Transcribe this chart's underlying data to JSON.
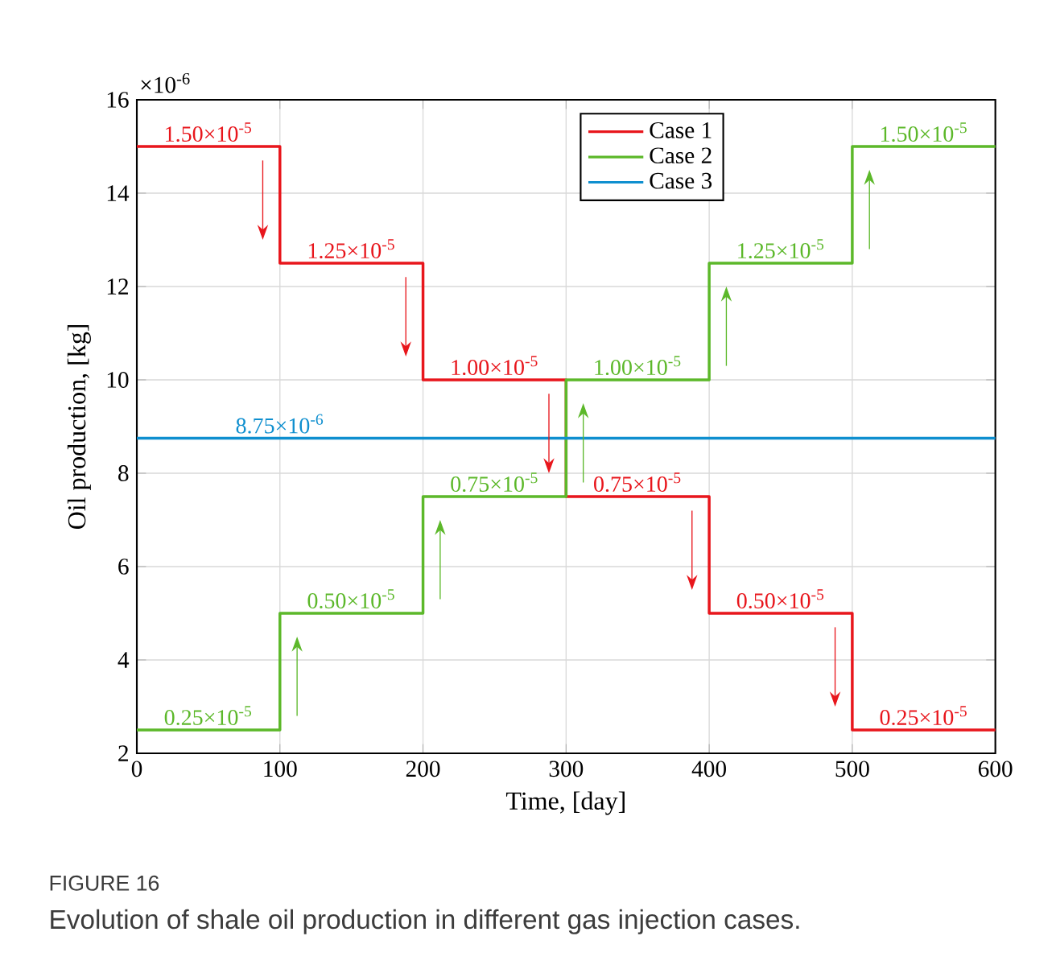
{
  "chart_data": {
    "type": "step",
    "xlabel": "Time, [day]",
    "ylabel": "Oil production, [kg]",
    "xlim": [
      0,
      600
    ],
    "ylim": [
      2,
      16
    ],
    "xticks": [
      0,
      100,
      200,
      300,
      400,
      500,
      600
    ],
    "yticks": [
      2,
      4,
      6,
      8,
      10,
      12,
      14,
      16
    ],
    "grid": true,
    "legend": "top",
    "line_style": "solid",
    "marker": "none",
    "series": [
      {
        "name": "Case 1",
        "color": "#e8161c",
        "x": [
          0,
          100,
          200,
          300,
          400,
          500,
          600
        ],
        "values": [
          15,
          12.5,
          10,
          7.5,
          5,
          2.5,
          2.5
        ]
      },
      {
        "name": "Case 2",
        "color": "#5cb82a",
        "x": [
          0,
          100,
          200,
          300,
          400,
          500,
          600
        ],
        "values": [
          2.5,
          5,
          7.5,
          10,
          12.5,
          15,
          15
        ]
      },
      {
        "name": "Case 3",
        "color": "#0f8fcf",
        "x": [
          0,
          600
        ],
        "values": [
          8.75,
          8.75
        ]
      }
    ],
    "annotations": [
      "×10$^{-6}$",
      {
        "text": "1.50×10$^{-5}$",
        "x": 50,
        "y": 15
      },
      {
        "text": "1.25×10$^{-5}$",
        "x": 150,
        "y": 12.5
      },
      {
        "text": "1.00×10$^{-5}$",
        "x": 250,
        "y": 10
      },
      {
        "text": "0.75×10$^{-5}$",
        "x": 350,
        "y": 7.5
      },
      {
        "text": "0.50×10$^{-5}$",
        "x": 450,
        "y": 5
      },
      {
        "text": "0.25×10$^{-5}$",
        "x": 550,
        "y": 2.5
      },
      {
        "text": "0.25×10$^{-5}$",
        "x": 50,
        "y": 2.5
      },
      {
        "text": "0.50×10$^{-5}$",
        "x": 150,
        "y": 5
      },
      {
        "text": "0.75×10$^{-5}$",
        "x": 250,
        "y": 7.5
      },
      {
        "text": "1.00×10$^{-5}$",
        "x": 350,
        "y": 10
      },
      {
        "text": "1.25×10$^{-5}$",
        "x": 450,
        "y": 12.5
      },
      {
        "text": "1.50×10$^{-5}$",
        "x": 550,
        "y": 15
      },
      {
        "text": "8.75×10$^{-6}$",
        "x": 100,
        "y": 8.75
      },
      "FIGURE 16",
      "Evolution of shale oil production in different gas injection cases."
    ]
  }
}
